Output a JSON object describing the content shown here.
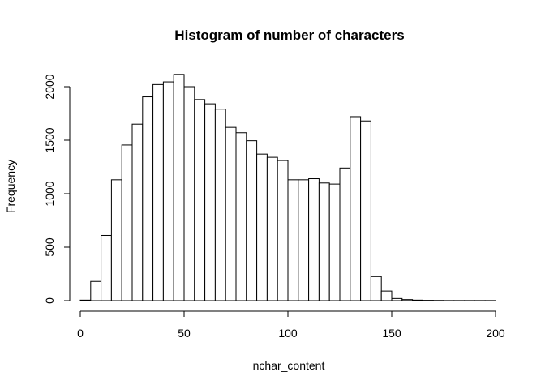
{
  "chart_data": {
    "type": "bar",
    "title": "Histogram of number of characters",
    "xlabel": "nchar_content",
    "ylabel": "Frequency",
    "xlim": [
      0,
      200
    ],
    "ylim": [
      0,
      2100
    ],
    "bin_width": 5,
    "bin_starts": [
      0,
      5,
      10,
      15,
      20,
      25,
      30,
      35,
      40,
      45,
      50,
      55,
      60,
      65,
      70,
      75,
      80,
      85,
      90,
      95,
      100,
      105,
      110,
      115,
      120,
      125,
      130,
      135,
      140,
      145,
      150,
      155,
      160,
      165,
      170,
      175,
      180,
      185,
      190,
      195
    ],
    "values": [
      5,
      180,
      610,
      1130,
      1455,
      1650,
      1905,
      2020,
      2045,
      2115,
      2000,
      1880,
      1840,
      1790,
      1620,
      1570,
      1495,
      1370,
      1340,
      1310,
      1130,
      1130,
      1140,
      1100,
      1090,
      1240,
      1720,
      1680,
      225,
      90,
      20,
      10,
      5,
      3,
      2,
      1,
      1,
      1,
      1,
      1
    ],
    "x_ticks": [
      0,
      50,
      100,
      150,
      200
    ],
    "x_tick_labels": [
      "0",
      "50",
      "100",
      "150",
      "200"
    ],
    "y_ticks": [
      0,
      500,
      1000,
      1500,
      2000
    ],
    "y_tick_labels": [
      "0",
      "500",
      "1000",
      "1500",
      "2000"
    ],
    "grid": false,
    "legend": "none"
  }
}
